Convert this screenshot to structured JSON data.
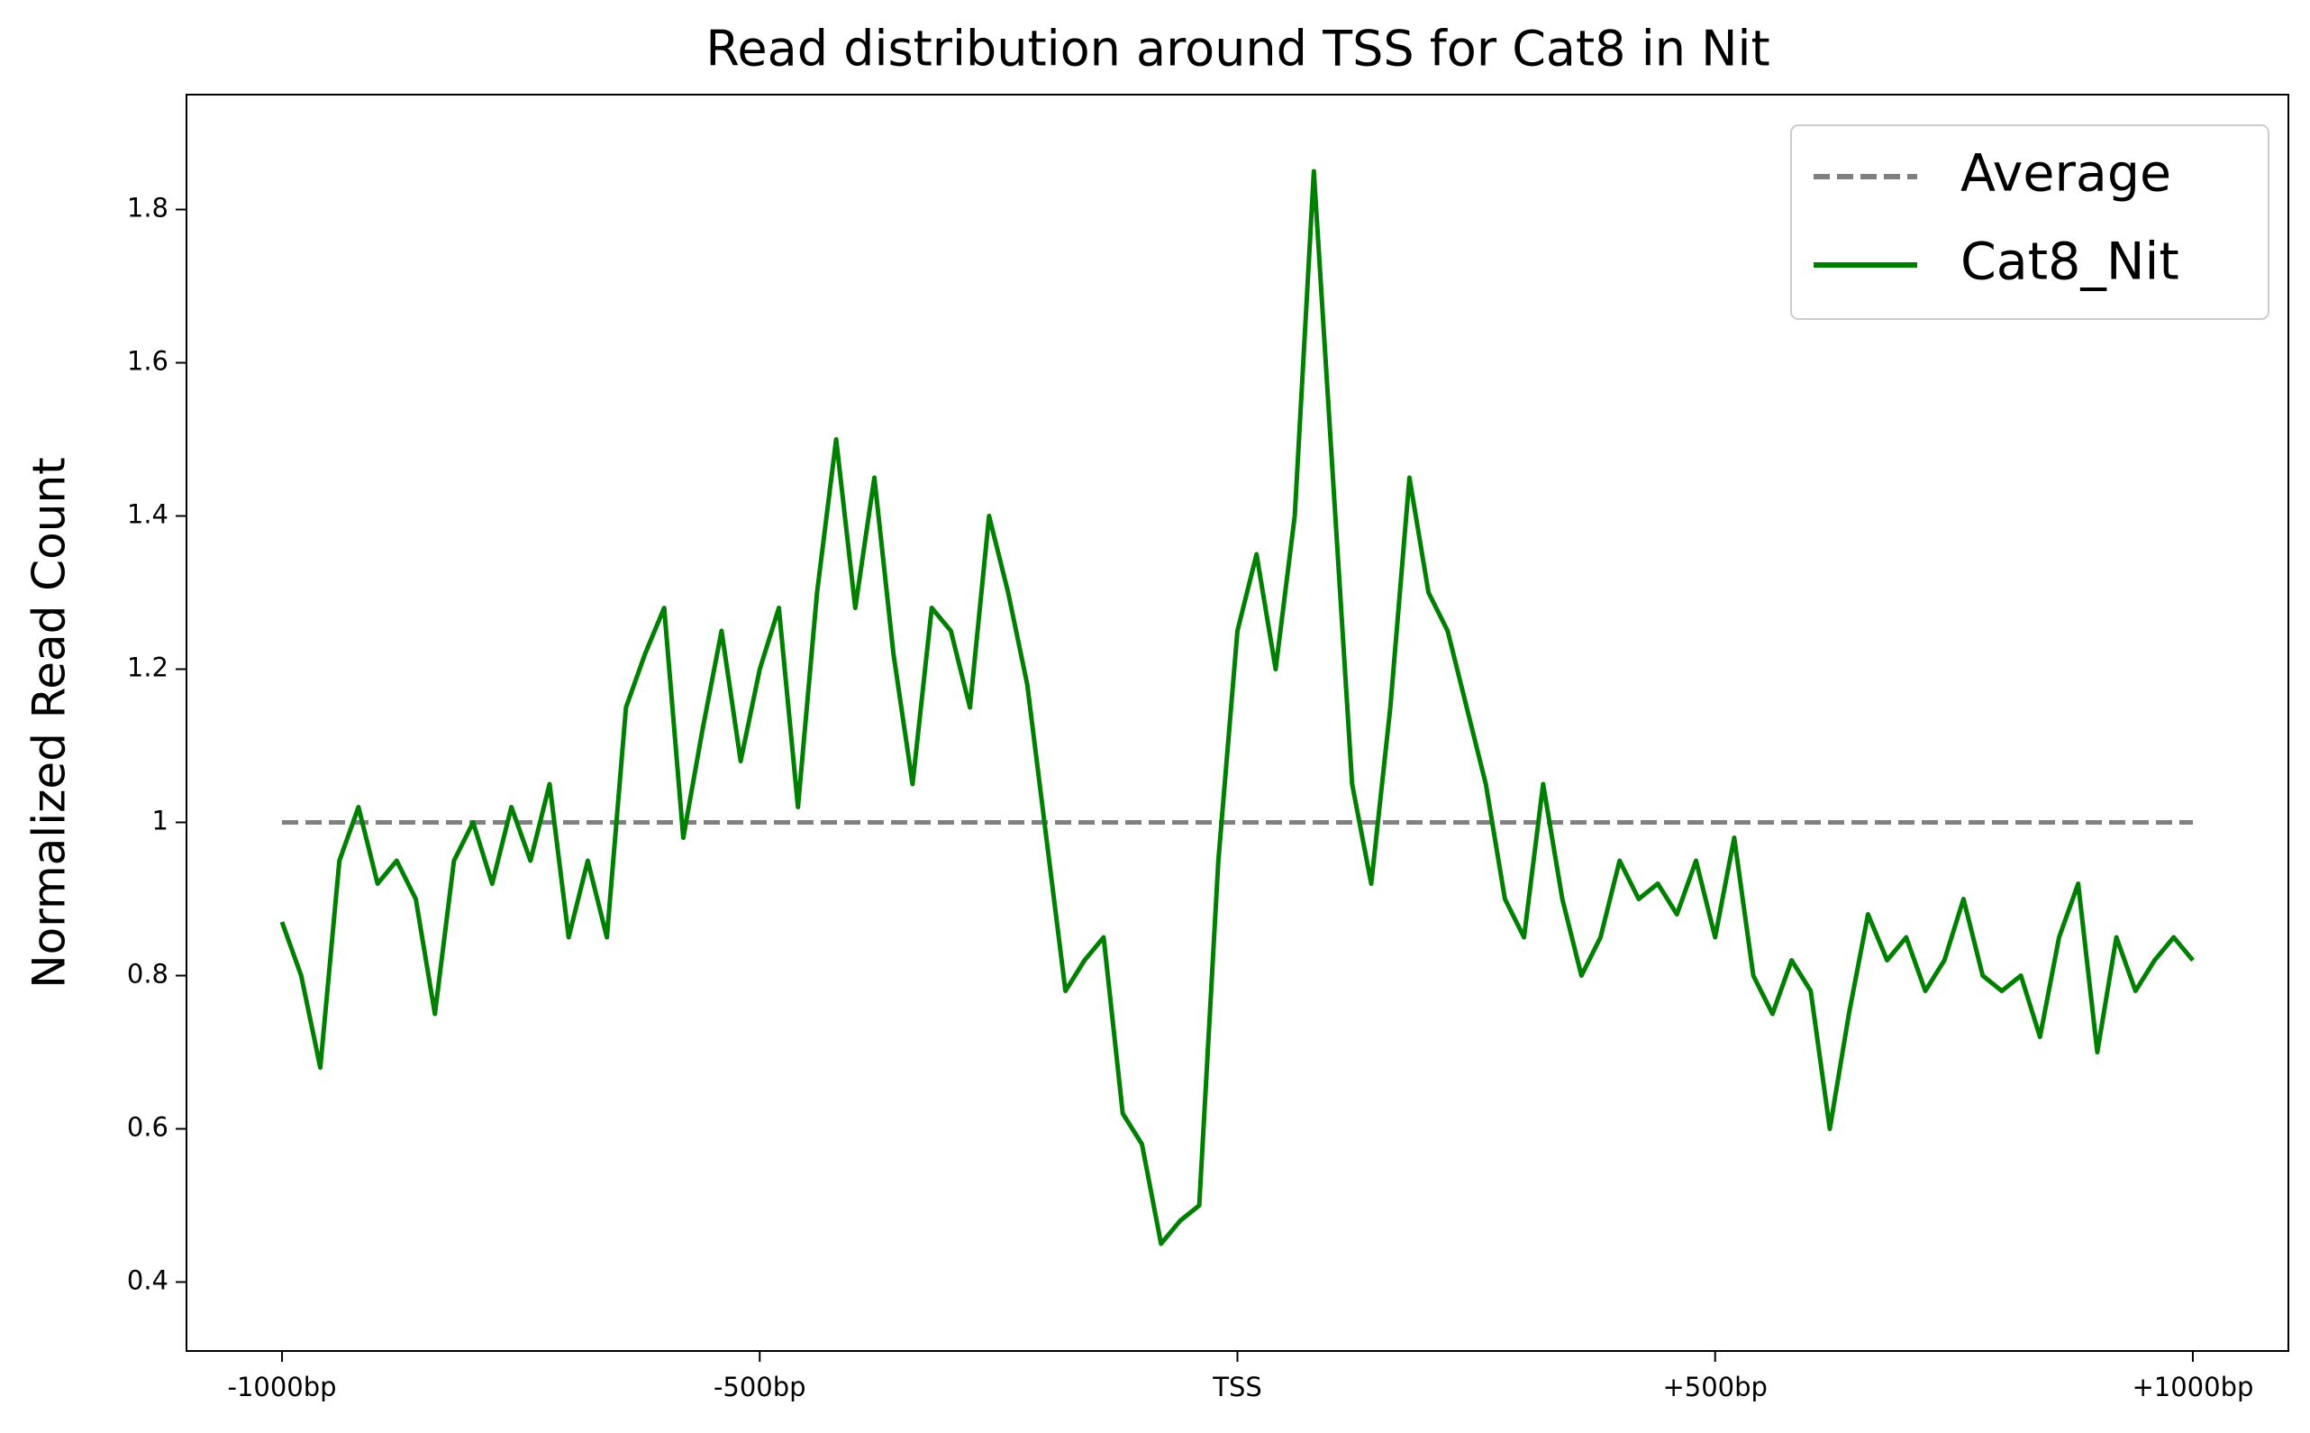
{
  "chart_data": {
    "type": "line",
    "title": "Read distribution around TSS for Cat8 in Nit",
    "y_label": "Normalized Read Count",
    "xlim": [
      -1100,
      1100
    ],
    "ylim": [
      0.31,
      1.95
    ],
    "xticks": [
      {
        "value": -1000,
        "label": "-1000bp"
      },
      {
        "value": -500,
        "label": "-500bp"
      },
      {
        "value": 0,
        "label": "TSS"
      },
      {
        "value": 500,
        "label": "+500bp"
      },
      {
        "value": 1000,
        "label": "+1000bp"
      }
    ],
    "yticks": [
      0.4,
      0.6,
      0.8,
      1.0,
      1.2,
      1.4,
      1.6,
      1.8
    ],
    "legend": "upper right",
    "series": [
      {
        "name": "Average",
        "color": "#808080",
        "dashed": true,
        "x": [
          -1000,
          1000
        ],
        "values": [
          1.0,
          1.0
        ]
      },
      {
        "name": "Cat8_Nit",
        "color": "#008000",
        "dashed": false,
        "x": [
          -1000,
          -980,
          -960,
          -940,
          -920,
          -900,
          -880,
          -860,
          -840,
          -820,
          -800,
          -780,
          -760,
          -740,
          -720,
          -700,
          -680,
          -660,
          -640,
          -620,
          -600,
          -580,
          -560,
          -540,
          -520,
          -500,
          -480,
          -460,
          -440,
          -420,
          -400,
          -380,
          -360,
          -340,
          -320,
          -300,
          -280,
          -260,
          -240,
          -220,
          -200,
          -180,
          -160,
          -140,
          -120,
          -100,
          -80,
          -60,
          -40,
          -20,
          0,
          20,
          40,
          60,
          80,
          100,
          120,
          140,
          160,
          180,
          200,
          220,
          240,
          260,
          280,
          300,
          320,
          340,
          360,
          380,
          400,
          420,
          440,
          460,
          480,
          500,
          520,
          540,
          560,
          580,
          600,
          620,
          640,
          660,
          680,
          700,
          720,
          740,
          760,
          780,
          800,
          820,
          840,
          860,
          880,
          900,
          920,
          940,
          960,
          980,
          1000
        ],
        "values": [
          0.87,
          0.8,
          0.68,
          0.95,
          1.02,
          0.92,
          0.95,
          0.9,
          0.75,
          0.95,
          1.0,
          0.92,
          1.02,
          0.95,
          1.05,
          0.85,
          0.95,
          0.85,
          1.15,
          1.22,
          1.28,
          0.98,
          1.12,
          1.25,
          1.08,
          1.2,
          1.28,
          1.02,
          1.3,
          1.5,
          1.28,
          1.45,
          1.22,
          1.05,
          1.28,
          1.25,
          1.15,
          1.4,
          1.3,
          1.18,
          0.98,
          0.78,
          0.82,
          0.85,
          0.62,
          0.58,
          0.45,
          0.48,
          0.5,
          0.95,
          1.25,
          1.35,
          1.2,
          1.4,
          1.85,
          1.45,
          1.05,
          0.92,
          1.15,
          1.45,
          1.3,
          1.25,
          1.15,
          1.05,
          0.9,
          0.85,
          1.05,
          0.9,
          0.8,
          0.85,
          0.95,
          0.9,
          0.92,
          0.88,
          0.95,
          0.85,
          0.98,
          0.8,
          0.75,
          0.82,
          0.78,
          0.6,
          0.75,
          0.88,
          0.82,
          0.85,
          0.78,
          0.82,
          0.9,
          0.8,
          0.78,
          0.8,
          0.72,
          0.85,
          0.92,
          0.7,
          0.85,
          0.78,
          0.82,
          0.85,
          0.82
        ]
      }
    ]
  }
}
